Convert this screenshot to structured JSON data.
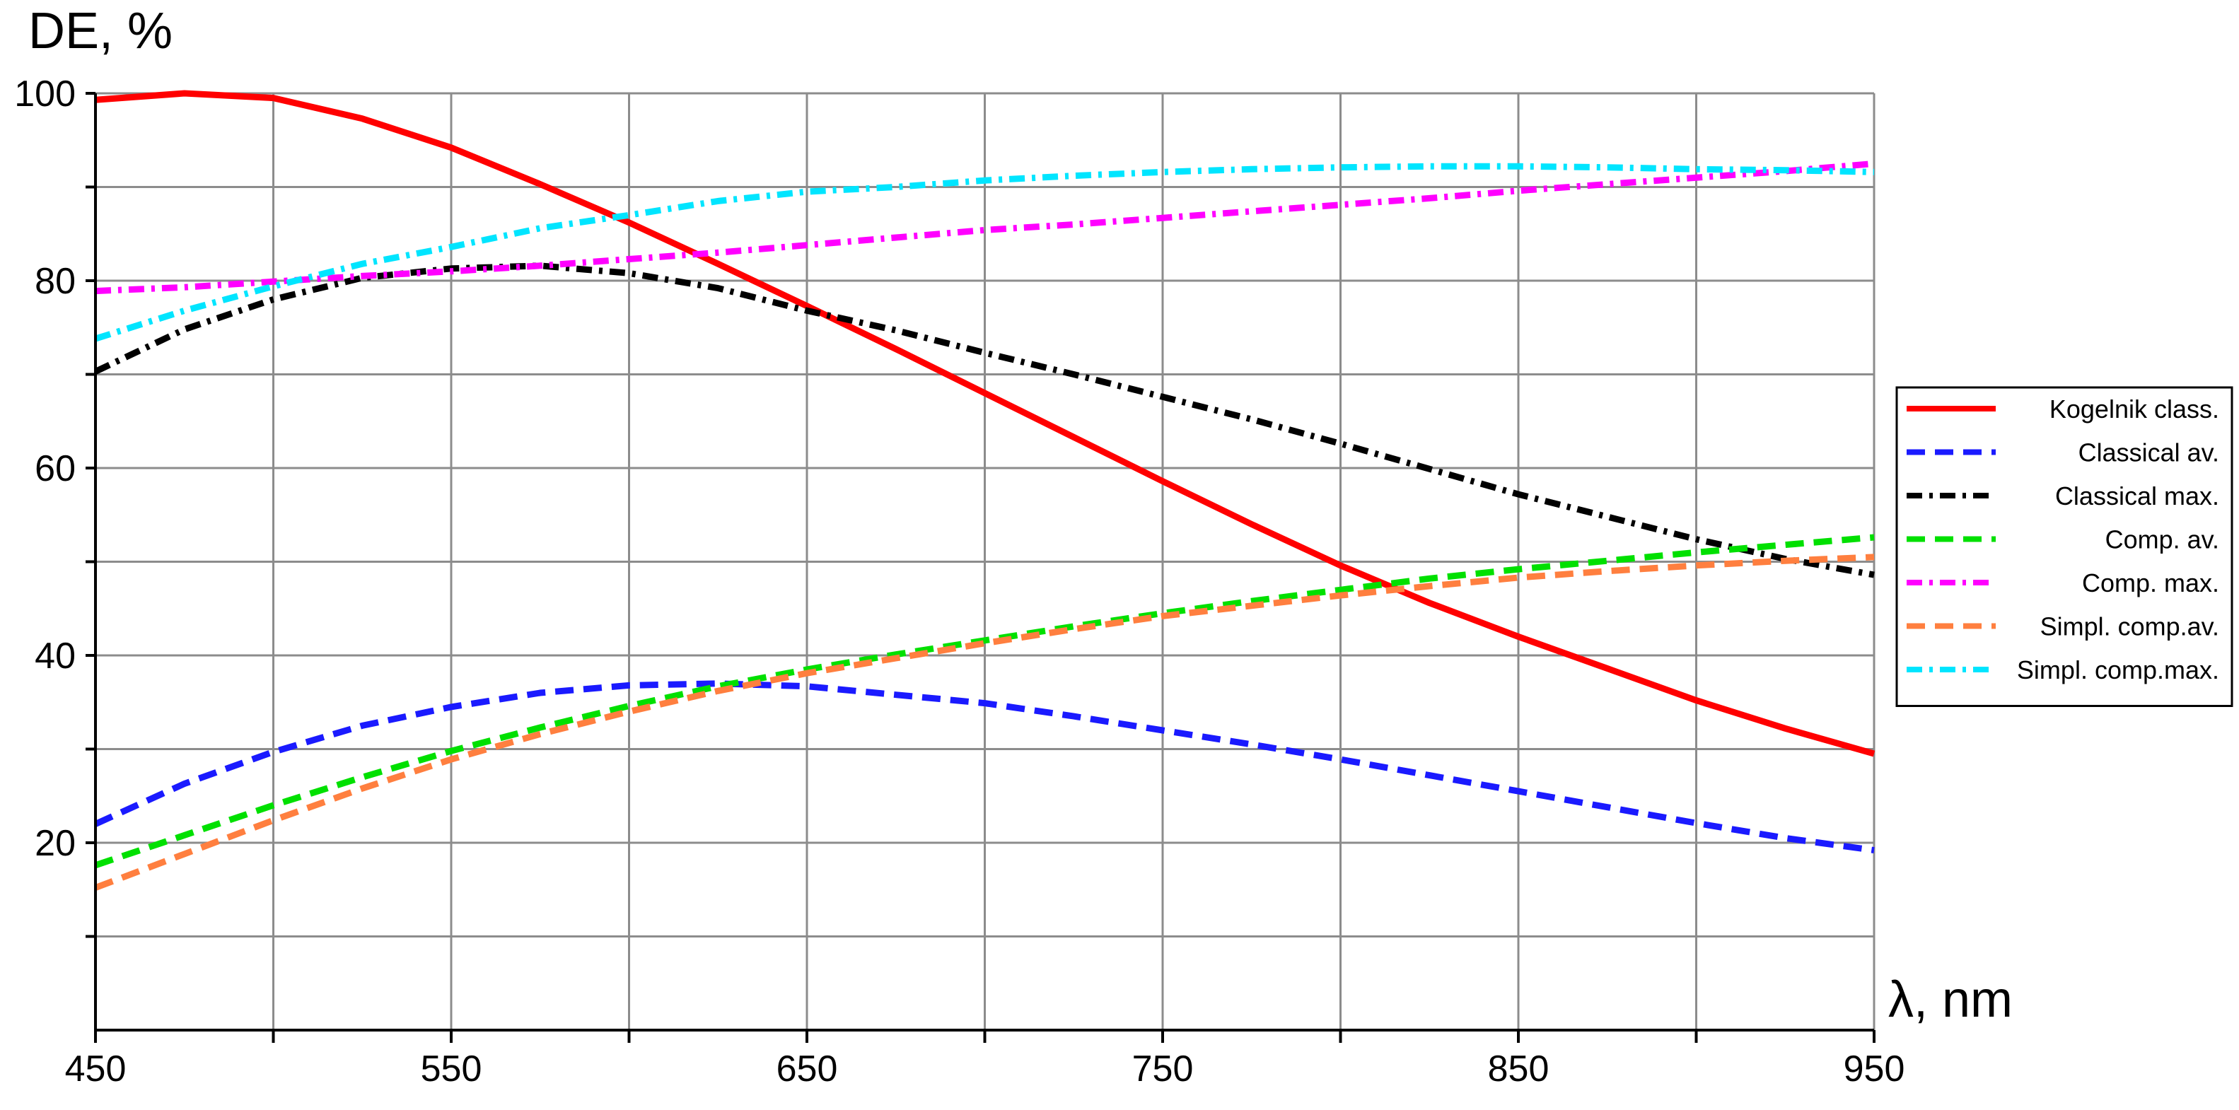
{
  "chart_data": {
    "type": "line",
    "ylabel": "DE, %",
    "xlabel": "λ, nm",
    "xlim": [
      450,
      950
    ],
    "ylim": [
      0,
      100
    ],
    "x_ticks": [
      450,
      550,
      650,
      750,
      850,
      950
    ],
    "x_minor": [
      500,
      600,
      700,
      800,
      900
    ],
    "y_ticks": [
      20,
      40,
      60,
      80,
      100
    ],
    "y_minor": [
      10,
      30,
      50,
      70,
      90
    ],
    "grid": true,
    "legend_position": "right",
    "series": [
      {
        "name": "Kogelnik class.",
        "color": "#ff0000",
        "style": "solid",
        "x": [
          450,
          475,
          500,
          525,
          550,
          575,
          600,
          625,
          650,
          675,
          700,
          725,
          750,
          775,
          800,
          825,
          850,
          875,
          900,
          925,
          950
        ],
        "y": [
          99.3,
          100,
          99.5,
          97.3,
          94.2,
          90.3,
          86.2,
          81.8,
          77.3,
          72.7,
          68.0,
          63.3,
          58.6,
          54.0,
          49.6,
          45.6,
          42.0,
          38.6,
          35.2,
          32.2,
          29.5
        ]
      },
      {
        "name": "Classical av.",
        "color": "#1a1aff",
        "style": "dash",
        "x": [
          450,
          475,
          500,
          525,
          550,
          575,
          600,
          625,
          650,
          675,
          700,
          725,
          750,
          775,
          800,
          825,
          850,
          875,
          900,
          925,
          950
        ],
        "y": [
          22.0,
          26.3,
          29.7,
          32.5,
          34.5,
          36.0,
          36.8,
          37.0,
          36.7,
          35.8,
          34.9,
          33.5,
          32.0,
          30.5,
          28.9,
          27.2,
          25.5,
          23.8,
          22.1,
          20.5,
          19.2
        ]
      },
      {
        "name": "Classical max.",
        "color": "#000000",
        "style": "dashdot",
        "x": [
          450,
          475,
          500,
          525,
          550,
          575,
          600,
          625,
          650,
          675,
          700,
          725,
          750,
          775,
          800,
          825,
          850,
          875,
          900,
          925,
          950
        ],
        "y": [
          70.3,
          74.8,
          78.0,
          80.3,
          81.3,
          81.6,
          80.8,
          79.2,
          76.8,
          74.7,
          72.3,
          70.0,
          67.6,
          65.2,
          62.6,
          59.9,
          57.2,
          54.8,
          52.4,
          50.3,
          48.6
        ]
      },
      {
        "name": "Comp. av.",
        "color": "#00e000",
        "style": "dash",
        "x": [
          450,
          475,
          500,
          525,
          550,
          575,
          600,
          625,
          650,
          675,
          700,
          725,
          750,
          775,
          800,
          825,
          850,
          875,
          900,
          925,
          950
        ],
        "y": [
          17.6,
          20.8,
          24.0,
          27.0,
          29.8,
          32.3,
          34.6,
          36.7,
          38.5,
          40.1,
          41.6,
          43.1,
          44.5,
          45.8,
          47.0,
          48.2,
          49.2,
          50.1,
          51.0,
          51.8,
          52.6
        ]
      },
      {
        "name": "Comp. max.",
        "color": "#ff00ff",
        "style": "dashdot",
        "x": [
          450,
          475,
          500,
          525,
          550,
          575,
          600,
          625,
          650,
          675,
          700,
          725,
          750,
          775,
          800,
          825,
          850,
          875,
          900,
          925,
          950
        ],
        "y": [
          78.9,
          79.3,
          79.9,
          80.5,
          81.0,
          81.6,
          82.3,
          83.0,
          83.8,
          84.6,
          85.4,
          86.0,
          86.7,
          87.4,
          88.1,
          88.8,
          89.6,
          90.3,
          91.0,
          91.7,
          92.5
        ]
      },
      {
        "name": "Simpl. comp.av.",
        "color": "#ff7f3f",
        "style": "dash",
        "x": [
          450,
          475,
          500,
          525,
          550,
          575,
          600,
          625,
          650,
          675,
          700,
          725,
          750,
          775,
          800,
          825,
          850,
          875,
          900,
          925,
          950
        ],
        "y": [
          15.2,
          18.8,
          22.4,
          25.8,
          28.9,
          31.6,
          34.0,
          36.2,
          38.1,
          39.7,
          41.3,
          42.8,
          44.2,
          45.3,
          46.4,
          47.4,
          48.3,
          49.0,
          49.6,
          50.1,
          50.5
        ]
      },
      {
        "name": "Simpl. comp.max.",
        "color": "#00e5ff",
        "style": "dashdot",
        "x": [
          450,
          475,
          500,
          525,
          550,
          575,
          600,
          625,
          650,
          675,
          700,
          725,
          750,
          775,
          800,
          825,
          850,
          875,
          900,
          925,
          950
        ],
        "y": [
          73.8,
          76.8,
          79.4,
          81.8,
          83.6,
          85.6,
          87.0,
          88.5,
          89.5,
          90.0,
          90.7,
          91.2,
          91.6,
          91.9,
          92.1,
          92.2,
          92.2,
          92.1,
          91.9,
          91.8,
          91.6
        ]
      }
    ]
  }
}
